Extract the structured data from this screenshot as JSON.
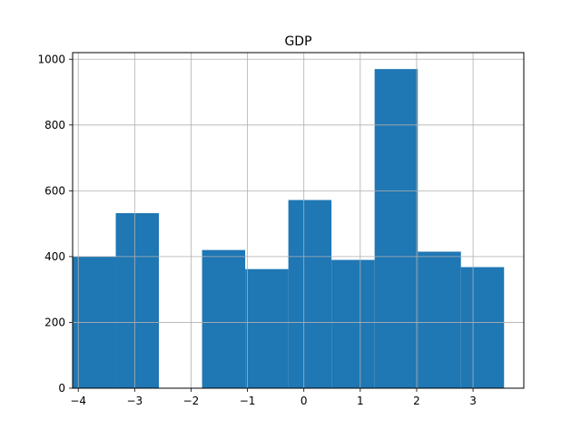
{
  "chart_data": {
    "type": "bar",
    "title": "GDP",
    "xlabel": "",
    "ylabel": "",
    "xlim": [
      -4.1,
      3.9
    ],
    "ylim": [
      0,
      1020
    ],
    "grid": true,
    "bar_color": "#1f77b4",
    "grid_color": "#b0b0b0",
    "bin_edges": [
      -4.1,
      -3.335,
      -2.57,
      -1.805,
      -1.04,
      -0.275,
      0.49,
      1.255,
      2.02,
      2.785,
      3.55
    ],
    "values": [
      400,
      532,
      0,
      420,
      362,
      572,
      390,
      970,
      415,
      368
    ],
    "x_ticks": [
      {
        "value": -4,
        "label": "−4"
      },
      {
        "value": -3,
        "label": "−3"
      },
      {
        "value": -2,
        "label": "−2"
      },
      {
        "value": -1,
        "label": "−1"
      },
      {
        "value": 0,
        "label": "0"
      },
      {
        "value": 1,
        "label": "1"
      },
      {
        "value": 2,
        "label": "2"
      },
      {
        "value": 3,
        "label": "3"
      }
    ],
    "y_ticks": [
      {
        "value": 0,
        "label": "0"
      },
      {
        "value": 200,
        "label": "200"
      },
      {
        "value": 400,
        "label": "400"
      },
      {
        "value": 600,
        "label": "600"
      },
      {
        "value": 800,
        "label": "800"
      },
      {
        "value": 1000,
        "label": "1000"
      }
    ]
  }
}
